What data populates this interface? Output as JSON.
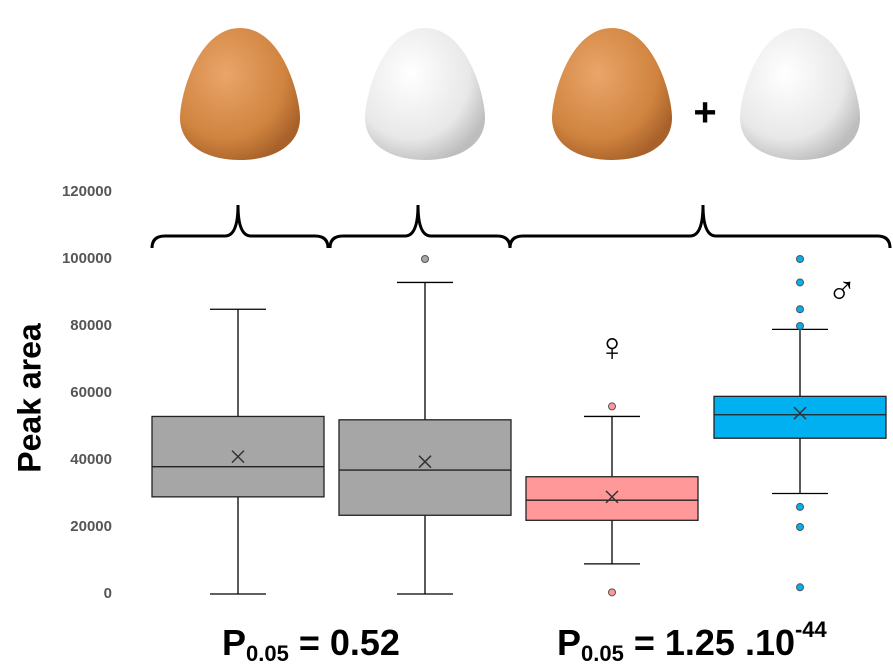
{
  "chart_data": {
    "type": "box",
    "y_label": "Peak area",
    "categories": [
      null,
      null,
      null,
      null
    ],
    "ylim": [
      0,
      120000
    ],
    "yticks": [
      0,
      20000,
      40000,
      60000,
      80000,
      100000,
      120000
    ],
    "boxes": [
      {
        "color": "#a6a6a6",
        "min": 0,
        "q1": 29000,
        "median": 38000,
        "q3": 53000,
        "max": 85000,
        "mean": 41000,
        "outliers": []
      },
      {
        "color": "#a6a6a6",
        "min": 0,
        "q1": 23500,
        "median": 37000,
        "q3": 52000,
        "max": 93000,
        "mean": 39500,
        "outliers": [
          100000
        ]
      },
      {
        "color": "#ff9999",
        "min": 9000,
        "q1": 22000,
        "median": 28000,
        "q3": 35000,
        "max": 53000,
        "mean": 29000,
        "outliers": [
          56000,
          500
        ]
      },
      {
        "color": "#00b0f0",
        "min": 30000,
        "q1": 46500,
        "median": 53500,
        "q3": 59000,
        "max": 79000,
        "mean": 54000,
        "outliers": [
          100000,
          93000,
          85000,
          80000,
          26000,
          20000,
          2000
        ]
      }
    ],
    "annotations": {
      "plus": "+",
      "female": "♀",
      "male": "♂"
    },
    "p_values": [
      {
        "symbol": "P",
        "subscript": "0.05",
        "text": " = 0.52"
      },
      {
        "symbol": "P",
        "subscript": "0.05",
        "text": " = 1.25 .10",
        "superscript": "-44"
      }
    ]
  }
}
